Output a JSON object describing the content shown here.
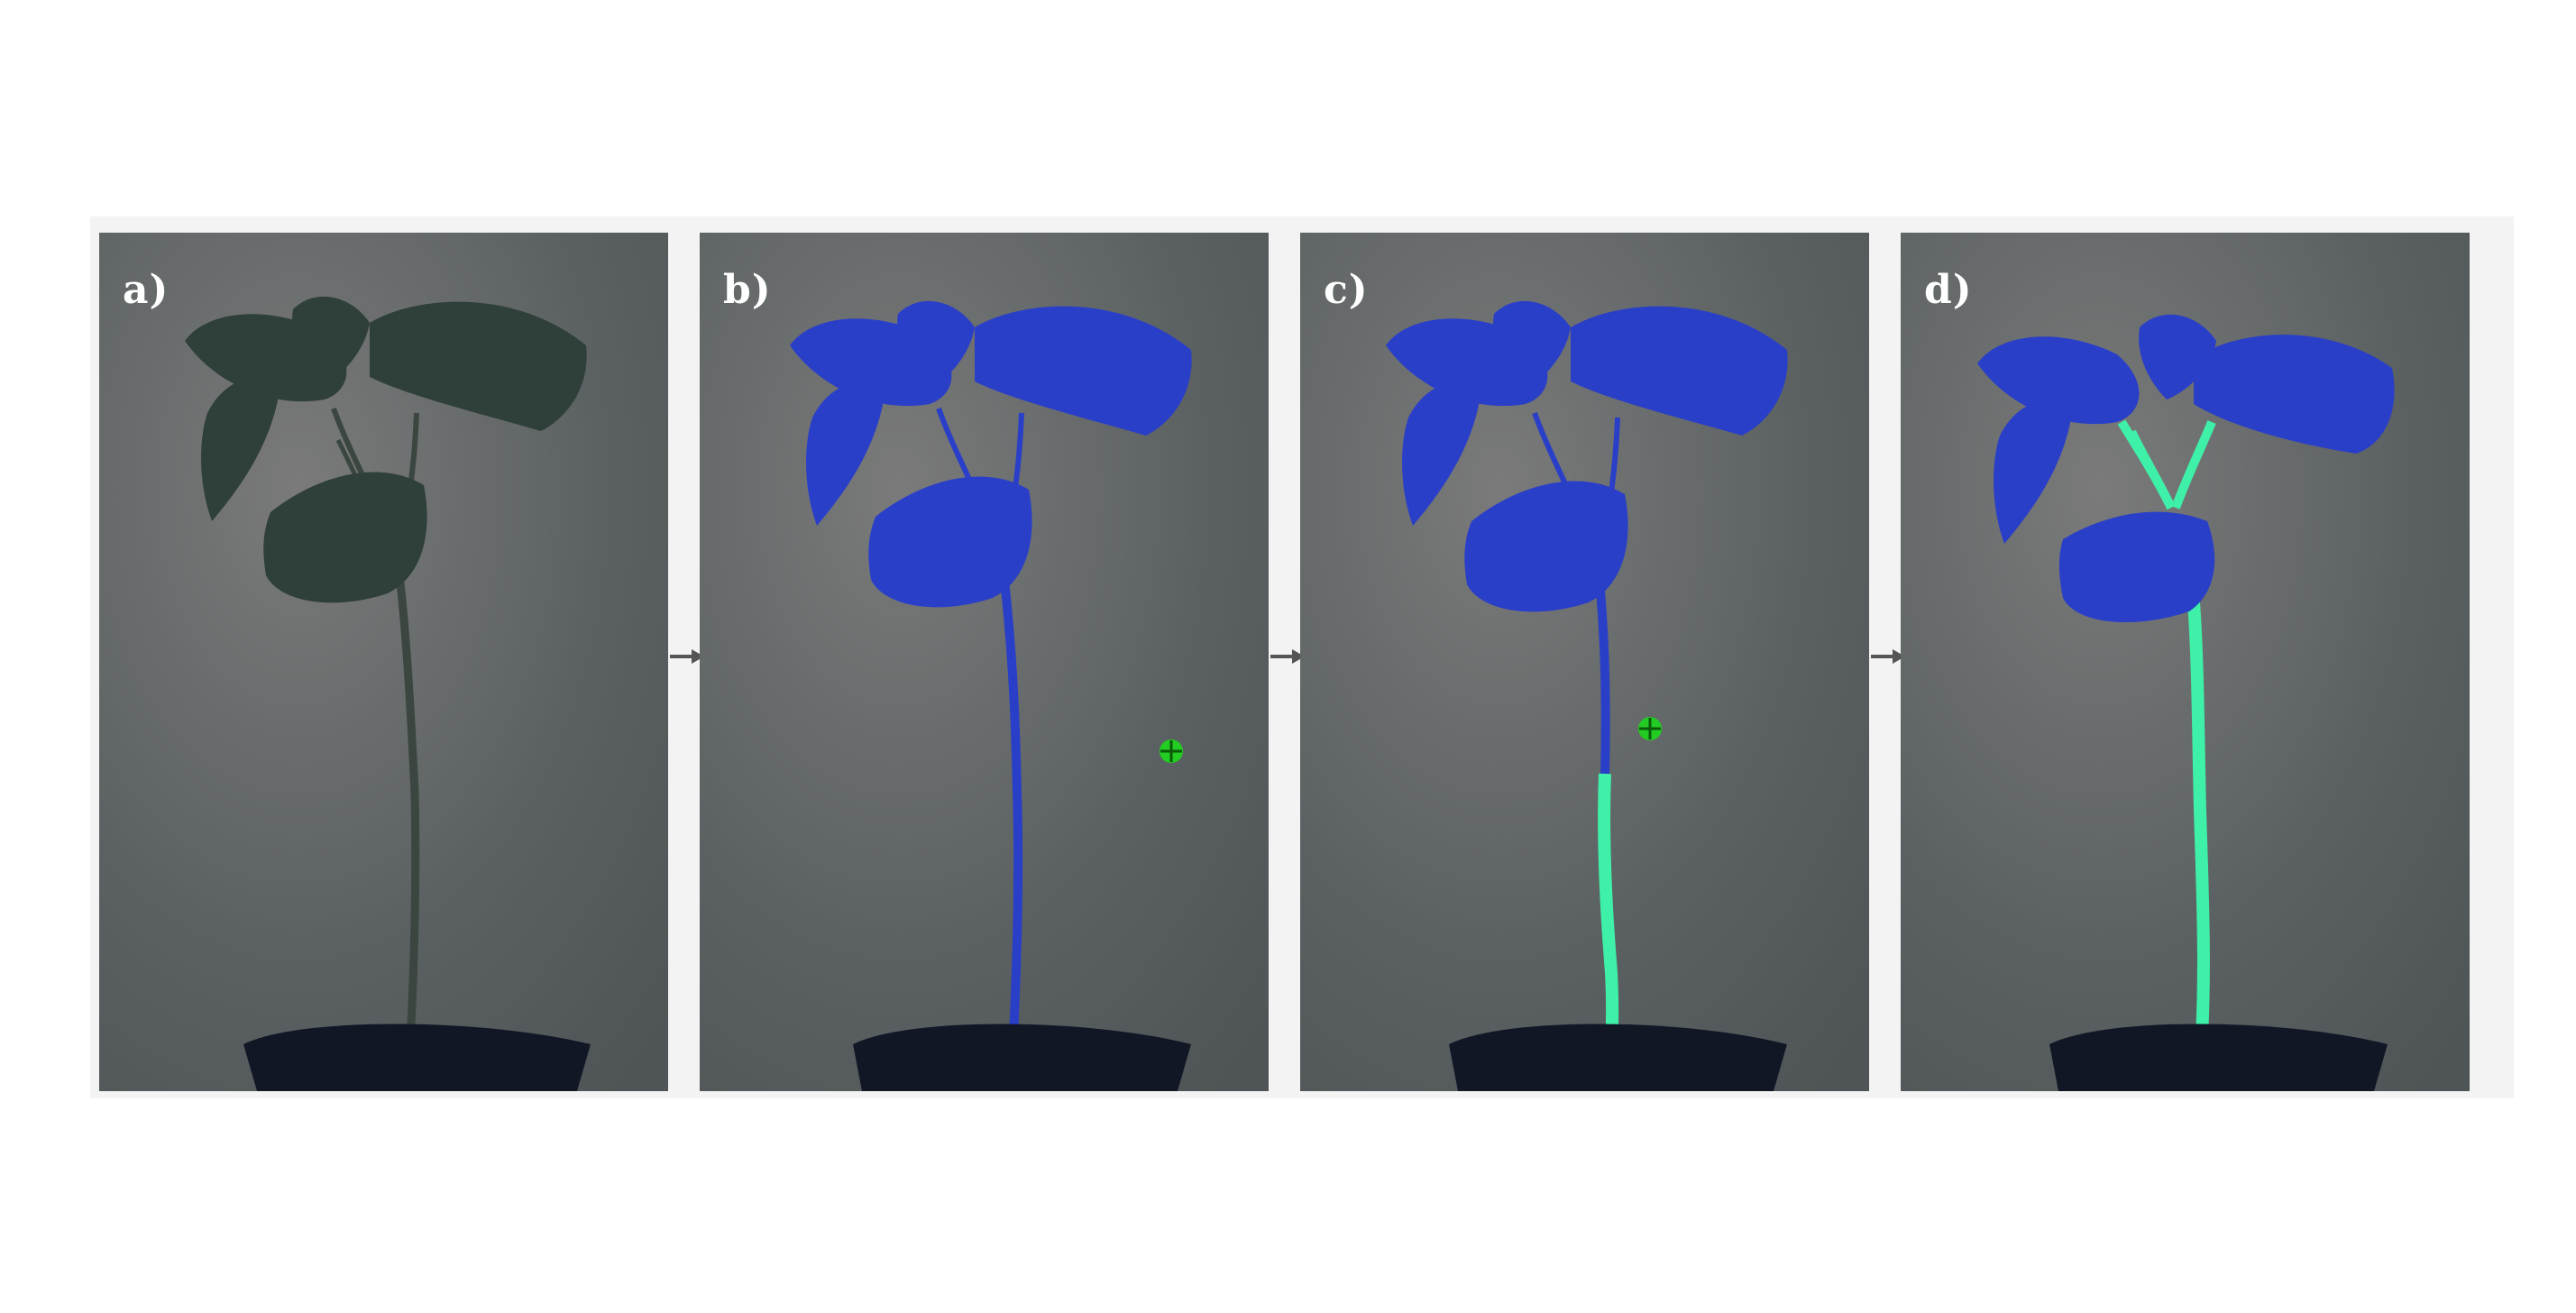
{
  "panels": [
    {
      "id": "a",
      "label": "a)"
    },
    {
      "id": "b",
      "label": "b)"
    },
    {
      "id": "c",
      "label": "c)"
    },
    {
      "id": "d",
      "label": "d)"
    }
  ],
  "colors": {
    "leaf_natural": "#2f3f3a",
    "mask_blue": "#2a3fc8",
    "stem_green": "#3ff0a8",
    "marker_green": "#22cc22",
    "background_gray": "#6b6d6e",
    "pot": "#121726"
  },
  "icons": [
    "arrow-right-icon",
    "crosshair-marker-icon"
  ]
}
